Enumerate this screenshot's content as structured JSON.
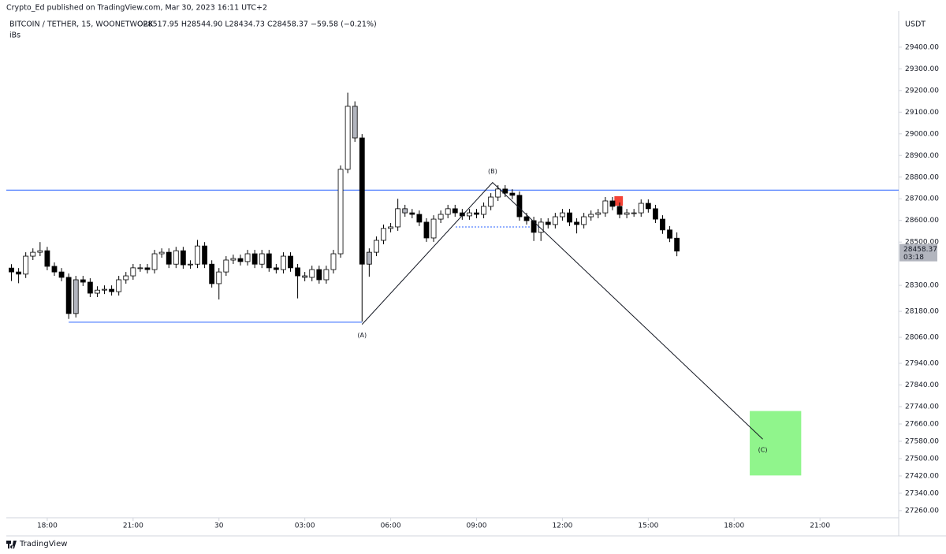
{
  "header": {
    "published": "Crypto_Ed published on TradingView.com, Mar 30, 2023 16:11 UTC+2",
    "symbol": "BITCOIN / TETHER, 15, WOONETWORK",
    "ohlc_text": "O28517.95 H28544.90 L28434.73 C28458.37 −59.58 (−0.21%)",
    "indicator": "iBs",
    "currency": "USDT",
    "countdown": "03:18",
    "footer": "TradingView"
  },
  "chart_data": {
    "type": "candlestick",
    "x": [
      16.75,
      17,
      17.25,
      17.5,
      17.75,
      18,
      18.25,
      18.5,
      18.75,
      19,
      19.25,
      19.5,
      19.75,
      20,
      20.25,
      20.5,
      20.75,
      21,
      21.25,
      21.5,
      21.75,
      22,
      22.25,
      22.5,
      22.75,
      23,
      23.25,
      23.5,
      23.75,
      24,
      24.25,
      24.5,
      24.75,
      25,
      25.25,
      25.5,
      25.75,
      26,
      26.25,
      26.5,
      26.75,
      27,
      27.25,
      27.5,
      27.75,
      28,
      28.25,
      28.5,
      28.75,
      29,
      29.25,
      29.5,
      29.75,
      30,
      30.25,
      30.5,
      30.75,
      31,
      31.25,
      31.5,
      31.75,
      32,
      32.25,
      32.5,
      32.75,
      33,
      33.25,
      33.5,
      33.75,
      34,
      34.25,
      34.5,
      34.75,
      35,
      35.25,
      35.5,
      35.75,
      36,
      36.25,
      36.5,
      36.75,
      37,
      37.25,
      37.5,
      37.75,
      38,
      38.25,
      38.5,
      38.75,
      39,
      39.25,
      39.5,
      39.75,
      40
    ],
    "open": [
      28380,
      28362,
      28352,
      28435,
      28453,
      28460,
      28388,
      28362,
      28337,
      28170,
      28326,
      28315,
      28264,
      28278,
      28282,
      28271,
      28326,
      28344,
      28381,
      28381,
      28373,
      28446,
      28453,
      28398,
      28460,
      28395,
      28398,
      28482,
      28398,
      28308,
      28362,
      28417,
      28424,
      28410,
      28446,
      28398,
      28446,
      28381,
      28373,
      28435,
      28381,
      28344,
      28337,
      28373,
      28326,
      28373,
      28446,
      28836,
      29127,
      28981,
      28398,
      28453,
      28508,
      28563,
      28570,
      28654,
      28635,
      28628,
      28592,
      28519,
      28606,
      28628,
      28654,
      28635,
      28621,
      28635,
      28628,
      28665,
      28708,
      28745,
      28726,
      28716,
      28617,
      28599,
      28545,
      28592,
      28581,
      28617,
      28635,
      28592,
      28581,
      28617,
      28628,
      28635,
      28690,
      28665,
      28628,
      28635,
      28635,
      28679,
      28654,
      28606,
      28556,
      28517.95
    ],
    "high": [
      28398,
      28380,
      28453,
      28471,
      28500,
      28478,
      28406,
      28380,
      28355,
      28344,
      28344,
      28333,
      28296,
      28300,
      28300,
      28344,
      28362,
      28399,
      28399,
      28399,
      28464,
      28471,
      28471,
      28478,
      28478,
      28416,
      28510,
      28500,
      28416,
      28380,
      28435,
      28442,
      28442,
      28464,
      28464,
      28464,
      28464,
      28399,
      28453,
      28453,
      28399,
      28362,
      28391,
      28391,
      28391,
      28464,
      28854,
      29190,
      29150,
      28999,
      28471,
      28526,
      28581,
      28588,
      28700,
      28672,
      28653,
      28646,
      28610,
      28624,
      28646,
      28672,
      28672,
      28653,
      28653,
      28653,
      28683,
      28726,
      28763,
      28763,
      28744,
      28734,
      28635,
      28617,
      28610,
      28610,
      28635,
      28653,
      28653,
      28610,
      28635,
      28646,
      28653,
      28708,
      28708,
      28683,
      28653,
      28653,
      28697,
      28697,
      28672,
      28624,
      28574,
      28544.9
    ],
    "low": [
      28320,
      28310,
      28334,
      28417,
      28435,
      28370,
      28344,
      28319,
      28145,
      28152,
      28297,
      28246,
      28246,
      28260,
      28253,
      28253,
      28308,
      28326,
      28363,
      28355,
      28355,
      28428,
      28380,
      28380,
      28377,
      28377,
      28380,
      28380,
      28290,
      28235,
      28344,
      28399,
      28392,
      28392,
      28380,
      28380,
      28363,
      28355,
      28355,
      28363,
      28240,
      28319,
      28319,
      28308,
      28308,
      28355,
      28428,
      28818,
      28963,
      28133,
      28340,
      28435,
      28490,
      28545,
      28552,
      28617,
      28610,
      28574,
      28501,
      28501,
      28588,
      28610,
      28617,
      28603,
      28603,
      28610,
      28610,
      28647,
      28690,
      28708,
      28698,
      28599,
      28581,
      28505,
      28505,
      28563,
      28563,
      28599,
      28574,
      28540,
      28563,
      28599,
      28610,
      28617,
      28647,
      28610,
      28610,
      28617,
      28617,
      28636,
      28588,
      28538,
      28500,
      28434.73
    ],
    "close": [
      28362,
      28352,
      28435,
      28453,
      28460,
      28388,
      28362,
      28337,
      28170,
      28326,
      28315,
      28264,
      28278,
      28282,
      28271,
      28326,
      28344,
      28381,
      28381,
      28373,
      28446,
      28453,
      28398,
      28460,
      28395,
      28398,
      28482,
      28398,
      28308,
      28362,
      28417,
      28424,
      28410,
      28446,
      28398,
      28446,
      28381,
      28373,
      28435,
      28381,
      28344,
      28337,
      28373,
      28326,
      28373,
      28446,
      28836,
      29127,
      28981,
      28398,
      28453,
      28508,
      28563,
      28570,
      28654,
      28635,
      28628,
      28592,
      28519,
      28606,
      28628,
      28654,
      28635,
      28621,
      28635,
      28628,
      28665,
      28708,
      28745,
      28726,
      28716,
      28617,
      28599,
      28545,
      28592,
      28581,
      28617,
      28635,
      28592,
      28581,
      28617,
      28628,
      28635,
      28690,
      28665,
      28628,
      28635,
      28635,
      28679,
      28654,
      28606,
      28556,
      28518,
      28458.37
    ],
    "up_color": "#ffffff",
    "down_color": "#000000",
    "inside_bar_color": "#b2b5be",
    "xlim": [
      16.57,
      47.75
    ],
    "ylim": [
      27216,
      29567
    ],
    "xticks": [
      {
        "value": 18,
        "label": "18:00"
      },
      {
        "value": 21,
        "label": "21:00"
      },
      {
        "value": 24,
        "label": "30"
      },
      {
        "value": 27,
        "label": "03:00"
      },
      {
        "value": 30,
        "label": "06:00"
      },
      {
        "value": 33,
        "label": "09:00"
      },
      {
        "value": 36,
        "label": "12:00"
      },
      {
        "value": 39,
        "label": "15:00"
      },
      {
        "value": 42,
        "label": "18:00"
      },
      {
        "value": 45,
        "label": "21:00"
      }
    ],
    "yticks": [
      {
        "value": 29400,
        "label": "29400.00"
      },
      {
        "value": 29300,
        "label": "29300.00"
      },
      {
        "value": 29200,
        "label": "29200.00"
      },
      {
        "value": 29100,
        "label": "29100.00"
      },
      {
        "value": 29000,
        "label": "29000.00"
      },
      {
        "value": 28900,
        "label": "28900.00"
      },
      {
        "value": 28800,
        "label": "28800.00"
      },
      {
        "value": 28700,
        "label": "28700.00"
      },
      {
        "value": 28600,
        "label": "28600.00"
      },
      {
        "value": 28500,
        "label": "28500.00"
      },
      {
        "value": 28300,
        "label": "28300.00"
      },
      {
        "value": 28180,
        "label": "28180.00"
      },
      {
        "value": 28060,
        "label": "28060.00"
      },
      {
        "value": 27940,
        "label": "27940.00"
      },
      {
        "value": 27840,
        "label": "27840.00"
      },
      {
        "value": 27740,
        "label": "27740.00"
      },
      {
        "value": 27660,
        "label": "27660.00"
      },
      {
        "value": 27580,
        "label": "27580.00"
      },
      {
        "value": 27500,
        "label": "27500.00"
      },
      {
        "value": 27420,
        "label": "27420.00"
      },
      {
        "value": 27340,
        "label": "27340.00"
      },
      {
        "value": 27260,
        "label": "27260.00"
      }
    ],
    "hlines": [
      {
        "y": 28740,
        "x": [
          16.57,
          47.75
        ],
        "color": "#2962ff"
      },
      {
        "y": 28130,
        "x": [
          18.75,
          29.0
        ],
        "color": "#2962ff"
      },
      {
        "y": 28570,
        "x": [
          32.27,
          35.36
        ],
        "color": "#2962ff",
        "dashed": true
      }
    ],
    "waves": [
      {
        "label": "(A)",
        "x": 29.0,
        "y": 28120
      },
      {
        "label": "(B)",
        "x": 33.56,
        "y": 28775
      },
      {
        "label": "(C)",
        "x": 43.0,
        "y": 27590
      }
    ],
    "boxes": [
      {
        "x": [
          42.56,
          44.33
        ],
        "y": [
          27424,
          27718
        ],
        "color": "#90f58c"
      },
      {
        "x": [
          37.83,
          38.1
        ],
        "y": [
          28670,
          28710
        ],
        "color": "#f44336"
      }
    ],
    "price_tag_color": "#b2b5be"
  }
}
